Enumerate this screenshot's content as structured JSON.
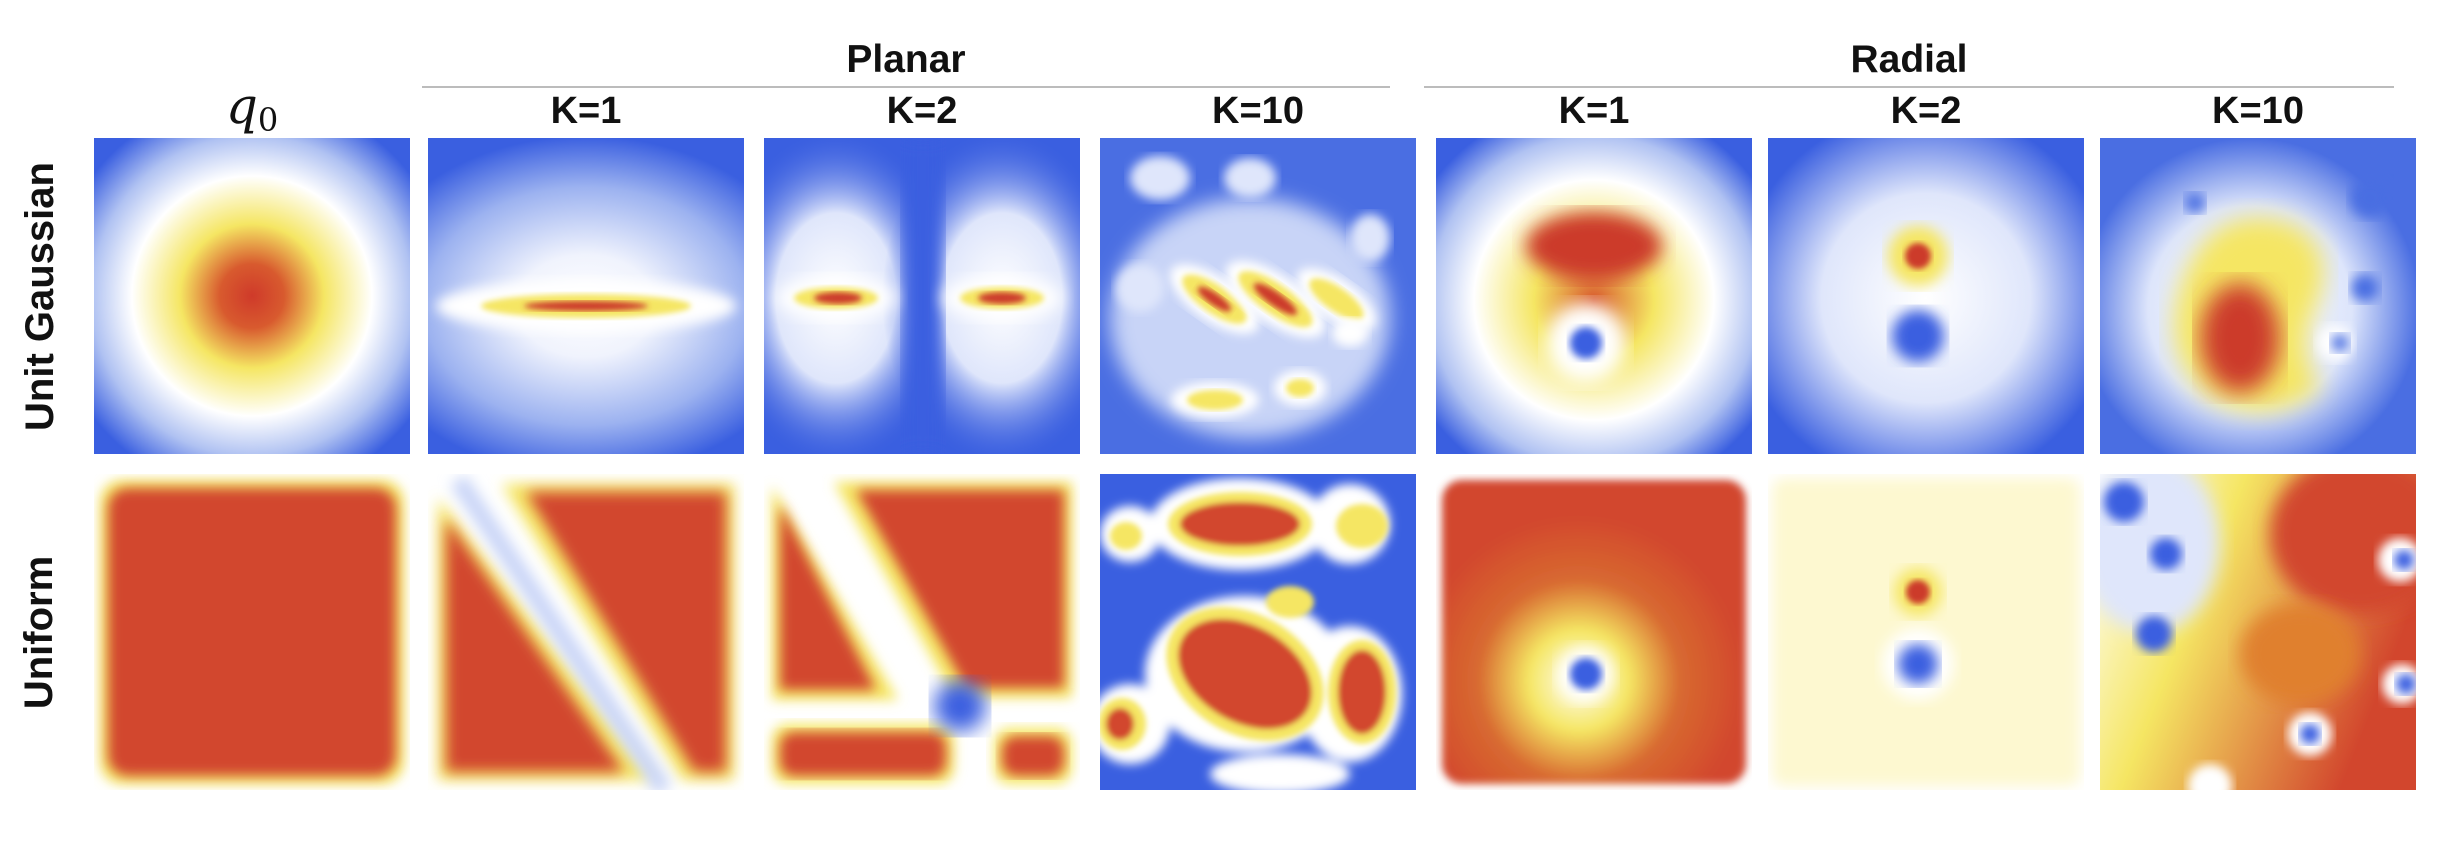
{
  "figure": {
    "column_groups": [
      {
        "id": "planar",
        "label": "Planar"
      },
      {
        "id": "radial",
        "label": "Radial"
      }
    ],
    "columns": [
      {
        "id": "q0",
        "label_var": "q",
        "label_sub": "0"
      },
      {
        "id": "planar-k1",
        "label": "K=1"
      },
      {
        "id": "planar-k2",
        "label": "K=2"
      },
      {
        "id": "planar-k10",
        "label": "K=10"
      },
      {
        "id": "radial-k1",
        "label": "K=1"
      },
      {
        "id": "radial-k2",
        "label": "K=2"
      },
      {
        "id": "radial-k10",
        "label": "K=10"
      }
    ],
    "rows": [
      {
        "id": "unit-gaussian",
        "label": "Unit Gaussian"
      },
      {
        "id": "uniform",
        "label": "Uniform"
      }
    ],
    "colormap": [
      "#3a5fe0",
      "#ffffff",
      "#f5e663",
      "#d0382a"
    ]
  }
}
